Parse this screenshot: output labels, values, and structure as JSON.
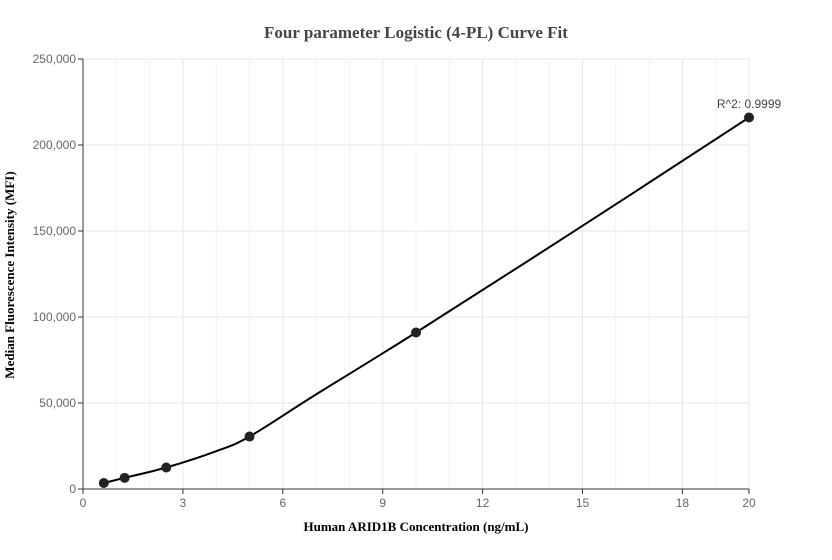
{
  "chart_data": {
    "type": "scatter",
    "title": "Four parameter Logistic (4-PL) Curve Fit",
    "xlabel": "Human ARID1B Concentration (ng/mL)",
    "ylabel": "Median Fluorescence Intensity (MFI)",
    "xlim": [
      0,
      20
    ],
    "ylim": [
      0,
      250000
    ],
    "x_ticks": [
      0,
      3,
      6,
      9,
      12,
      15,
      18,
      20
    ],
    "x_tick_labels": [
      "0",
      "3",
      "6",
      "9",
      "12",
      "15",
      "18",
      "20"
    ],
    "y_ticks": [
      0,
      50000,
      100000,
      150000,
      200000,
      250000
    ],
    "y_tick_labels": [
      "0",
      "50,000",
      "100,000",
      "150,000",
      "200,000",
      "250,000"
    ],
    "grid": true,
    "points": {
      "x": [
        0.625,
        1.25,
        2.5,
        5,
        10,
        20
      ],
      "y": [
        3500,
        6500,
        12500,
        30500,
        91000,
        216000
      ]
    },
    "fit_curve": {
      "x": [
        0.625,
        1.25,
        2.5,
        4,
        5,
        7,
        10,
        15,
        20
      ],
      "y": [
        3500,
        6500,
        12500,
        22000,
        30500,
        55000,
        91000,
        153000,
        216000
      ]
    },
    "annotation": "R^2: 0.9999"
  }
}
